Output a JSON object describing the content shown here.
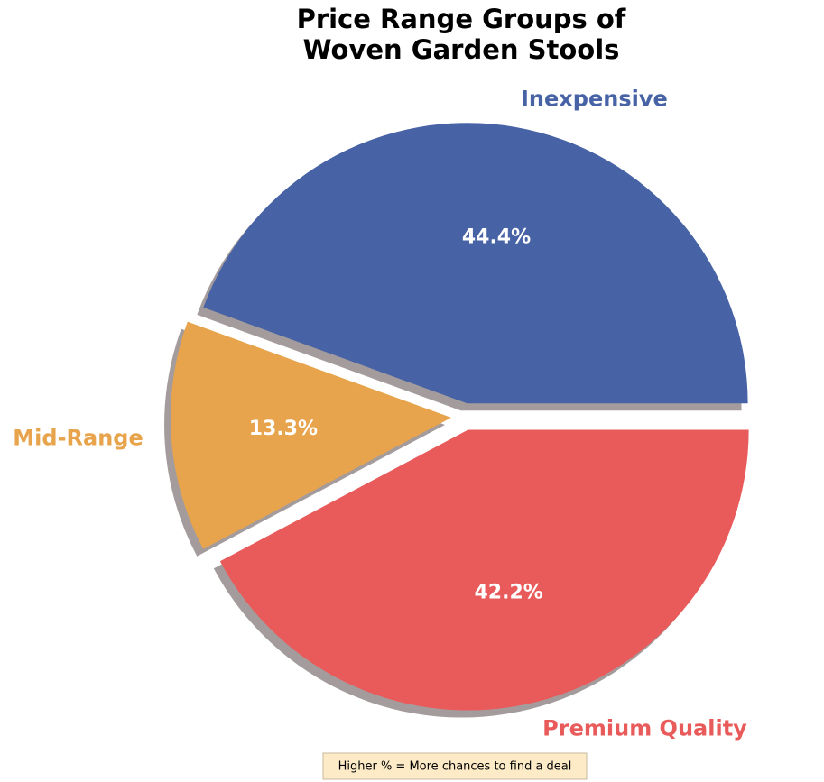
{
  "chart_data": {
    "type": "pie",
    "title": "Price Range Groups of\nWoven Garden Stools",
    "categories": [
      "Inexpensive",
      "Mid-Range",
      "Premium Quality"
    ],
    "values": [
      44.4,
      13.3,
      42.2
    ],
    "value_labels": [
      "44.4%",
      "13.3%",
      "42.2%"
    ],
    "colors": [
      "#4762a5",
      "#e8a44c",
      "#e95b5b"
    ],
    "shadow": true,
    "annotation": "Higher % = More chances to find a deal"
  }
}
